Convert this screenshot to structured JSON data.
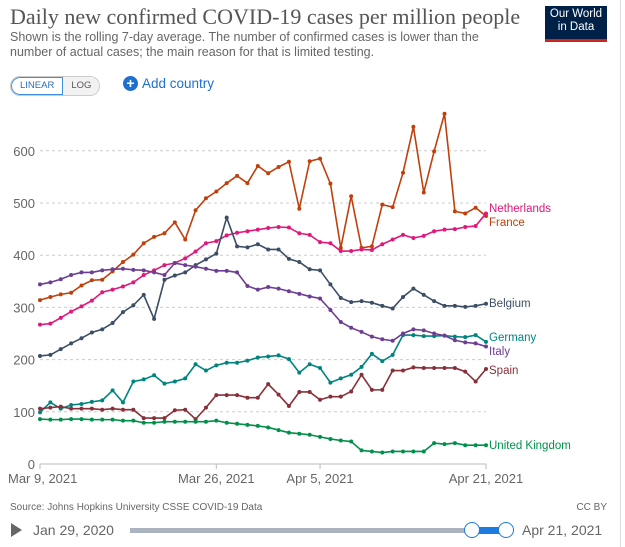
{
  "header": {
    "title": "Daily new confirmed COVID-19 cases per million people",
    "subtitle": "Shown is the rolling 7-day average. The number of confirmed cases is lower than the number of actual cases; the main reason for that is limited testing.",
    "logo_line1": "Our World",
    "logo_line2": "in Data"
  },
  "controls": {
    "linear": "LINEAR",
    "log": "LOG",
    "add_country": "Add country",
    "selected_scale": "LINEAR"
  },
  "footer": {
    "source": "Source: Johns Hopkins University CSSE COVID-19 Data",
    "license": "CC BY",
    "timeline_start": "Jan 29, 2020",
    "timeline_end": "Apr 21, 2021",
    "play_icon": "play-icon"
  },
  "chart_data": {
    "type": "line",
    "title": "Daily new confirmed COVID-19 cases per million people",
    "x_start": "2021-03-09",
    "x_end": "2021-04-21",
    "x_ticks": [
      "Mar 9, 2021",
      "Mar 26, 2021",
      "Apr 5, 2021",
      "Apr 21, 2021"
    ],
    "x_tick_dates": [
      "2021-03-09",
      "2021-03-26",
      "2021-04-05",
      "2021-04-21"
    ],
    "y_ticks": [
      0,
      100,
      200,
      300,
      400,
      500,
      600
    ],
    "ylim": [
      0,
      650
    ],
    "grid": true,
    "legend": "right (line end labels)",
    "series": [
      {
        "name": "France",
        "color": "#c0400c",
        "values": [
          314,
          320,
          325,
          328,
          342,
          352,
          353,
          369,
          387,
          401,
          423,
          435,
          442,
          463,
          430,
          486,
          509,
          522,
          538,
          552,
          538,
          571,
          557,
          569,
          579,
          489,
          580,
          585,
          537,
          414,
          513,
          414,
          417,
          497,
          492,
          558,
          646,
          520,
          599,
          671,
          484,
          480,
          491,
          475
        ]
      },
      {
        "name": "Netherlands",
        "color": "#e0187a",
        "values": [
          267,
          269,
          280,
          292,
          302,
          313,
          329,
          334,
          340,
          348,
          362,
          371,
          381,
          385,
          394,
          407,
          423,
          427,
          438,
          443,
          446,
          449,
          452,
          454,
          453,
          442,
          439,
          425,
          423,
          408,
          408,
          411,
          410,
          421,
          430,
          439,
          433,
          437,
          446,
          449,
          450,
          454,
          456,
          480
        ]
      },
      {
        "name": "Belgium",
        "color": "#3c4e66",
        "values": [
          207,
          209,
          220,
          231,
          241,
          252,
          258,
          270,
          291,
          304,
          324,
          278,
          353,
          361,
          367,
          381,
          392,
          403,
          472,
          417,
          415,
          421,
          411,
          411,
          393,
          387,
          373,
          371,
          344,
          318,
          310,
          312,
          309,
          303,
          298,
          320,
          336,
          324,
          312,
          303,
          303,
          301,
          303,
          307
        ]
      },
      {
        "name": "Germany",
        "color": "#00847e",
        "values": [
          99,
          118,
          106,
          113,
          115,
          119,
          122,
          141,
          118,
          158,
          162,
          170,
          154,
          158,
          164,
          191,
          179,
          189,
          194,
          194,
          198,
          204,
          206,
          208,
          201,
          175,
          191,
          184,
          156,
          164,
          171,
          186,
          211,
          197,
          209,
          247,
          247,
          245,
          245,
          246,
          244,
          243,
          247,
          234
        ]
      },
      {
        "name": "Italy",
        "color": "#6d3e91",
        "values": [
          344,
          348,
          354,
          362,
          367,
          367,
          371,
          373,
          374,
          372,
          371,
          367,
          362,
          385,
          381,
          378,
          374,
          370,
          370,
          367,
          341,
          334,
          339,
          336,
          331,
          326,
          321,
          317,
          295,
          272,
          261,
          253,
          244,
          239,
          236,
          250,
          258,
          256,
          250,
          246,
          237,
          233,
          231,
          225
        ]
      },
      {
        "name": "Spain",
        "color": "#883039",
        "values": [
          106,
          108,
          110,
          106,
          106,
          106,
          104,
          106,
          104,
          104,
          88,
          88,
          88,
          103,
          104,
          86,
          108,
          132,
          132,
          132,
          127,
          127,
          153,
          133,
          111,
          138,
          138,
          123,
          129,
          129,
          139,
          171,
          142,
          142,
          179,
          179,
          185,
          184,
          184,
          184,
          184,
          177,
          158,
          182
        ]
      },
      {
        "name": "United Kingdom",
        "color": "#00904a",
        "values": [
          86,
          85,
          85,
          86,
          86,
          85,
          85,
          85,
          83,
          83,
          79,
          79,
          81,
          81,
          81,
          81,
          81,
          83,
          79,
          77,
          75,
          73,
          70,
          65,
          60,
          58,
          56,
          52,
          48,
          45,
          43,
          26,
          24,
          22,
          24,
          24,
          24,
          24,
          40,
          38,
          40,
          36,
          36,
          36
        ]
      }
    ]
  }
}
